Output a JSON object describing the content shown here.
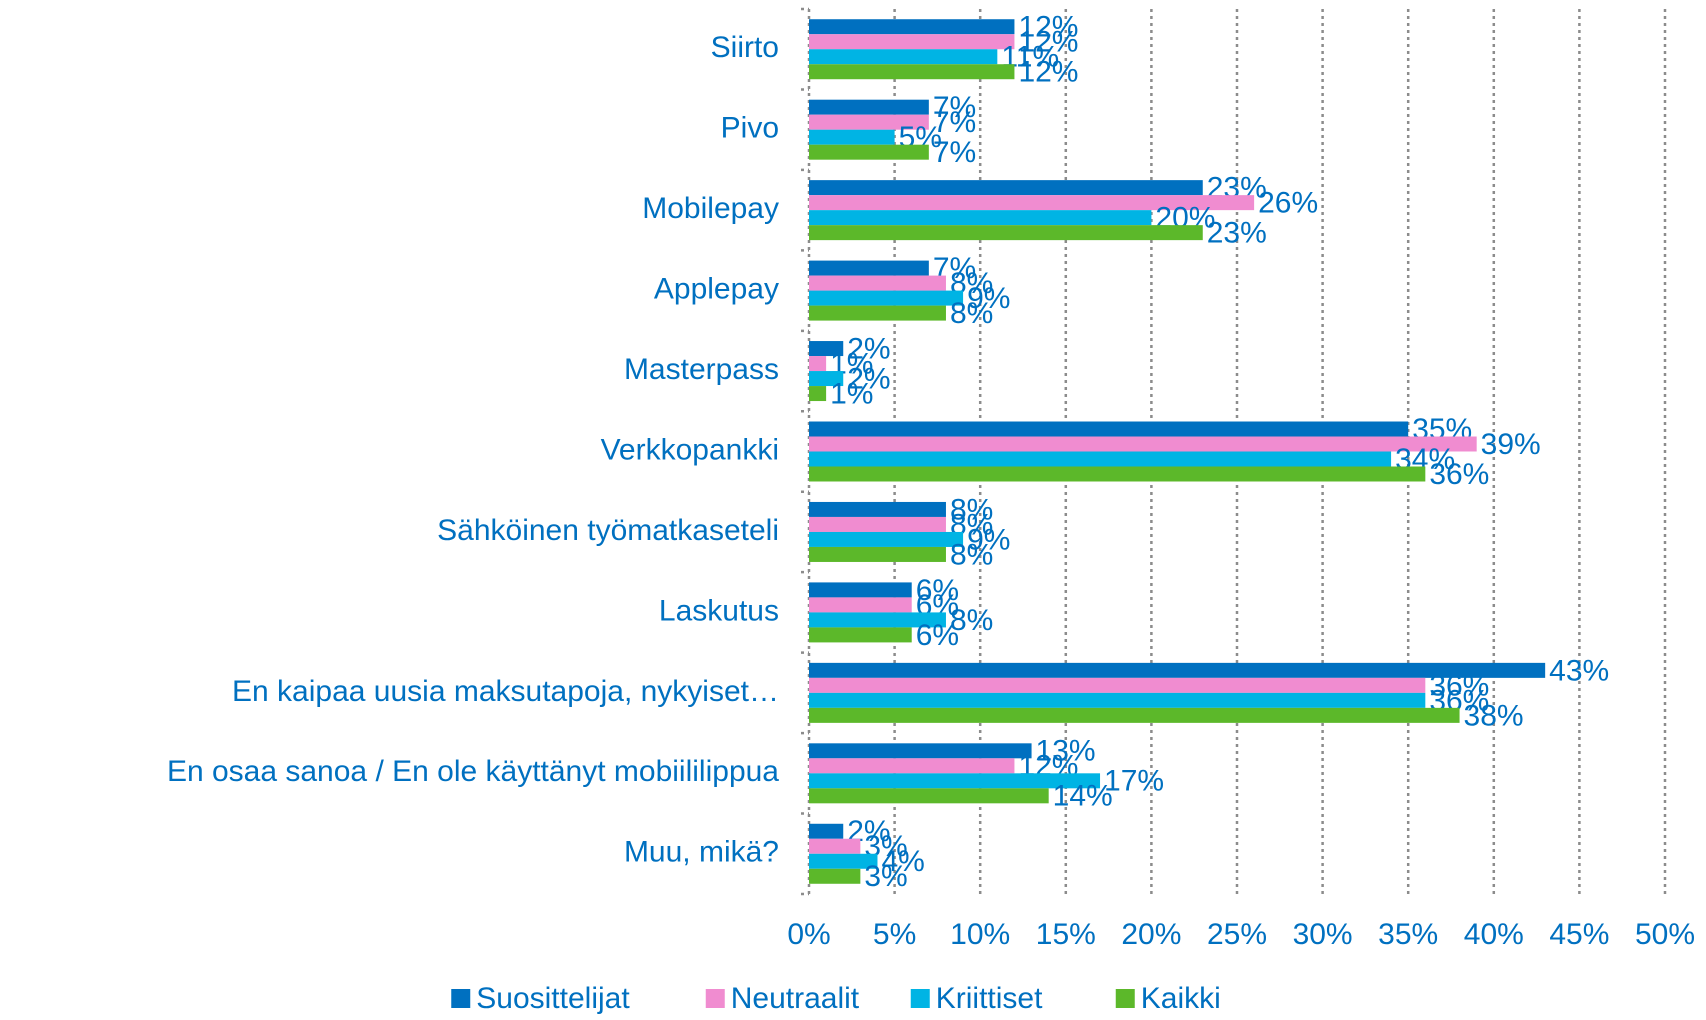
{
  "chart_data": {
    "type": "hbar",
    "categories": [
      "Siirto",
      "Pivo",
      "Mobilepay",
      "Applepay",
      "Masterpass",
      "Verkkopankki",
      "Sähköinen työmatkaseteli",
      "Laskutus",
      "En kaipaa uusia maksutapoja, nykyiset…",
      "En osaa sanoa / En ole käyttänyt mobiililippua",
      "Muu, mikä?"
    ],
    "series": [
      {
        "name": "Suosittelijat",
        "color": "#0070c0",
        "values": [
          12,
          7,
          23,
          7,
          2,
          35,
          8,
          6,
          43,
          13,
          2
        ],
        "value_labels": [
          "12%",
          "7%",
          "23%",
          "7%",
          "2%",
          "35%",
          "8%",
          "6%",
          "43%",
          "13%",
          "2%"
        ]
      },
      {
        "name": "Neutraalit",
        "color": "#f08cd0",
        "values": [
          12,
          7,
          26,
          8,
          1,
          39,
          8,
          6,
          36,
          12,
          3
        ],
        "value_labels": [
          "12%",
          "7%",
          "26%",
          "8%",
          "1%",
          "39%",
          "8%",
          "6%",
          "36%",
          "12%",
          "3%"
        ]
      },
      {
        "name": "Kriittiset",
        "color": "#00b4e4",
        "values": [
          11,
          5,
          20,
          9,
          2,
          34,
          9,
          8,
          36,
          17,
          4
        ],
        "value_labels": [
          "11%",
          "5%",
          "20%",
          "9%",
          "2%",
          "34%",
          "9%",
          "8%",
          "36%",
          "17%",
          "4%"
        ]
      },
      {
        "name": "Kaikki",
        "color": "#5cb82a",
        "values": [
          12,
          7,
          23,
          8,
          1,
          36,
          8,
          6,
          38,
          14,
          3
        ],
        "value_labels": [
          "12%",
          "7%",
          "23%",
          "8%",
          "1%",
          "36%",
          "8%",
          "6%",
          "38%",
          "14%",
          "3%"
        ]
      }
    ],
    "xlim": [
      0,
      50
    ],
    "xticks": [
      {
        "value": 0,
        "label": "0%"
      },
      {
        "value": 5,
        "label": "5%"
      },
      {
        "value": 10,
        "label": "10%"
      },
      {
        "value": 15,
        "label": "15%"
      },
      {
        "value": 20,
        "label": "20%"
      },
      {
        "value": 25,
        "label": "25%"
      },
      {
        "value": 30,
        "label": "30%"
      },
      {
        "value": 35,
        "label": "35%"
      },
      {
        "value": 40,
        "label": "40%"
      },
      {
        "value": 45,
        "label": "45%"
      },
      {
        "value": 50,
        "label": "50%"
      }
    ],
    "grid": true,
    "legend": "bottom"
  }
}
